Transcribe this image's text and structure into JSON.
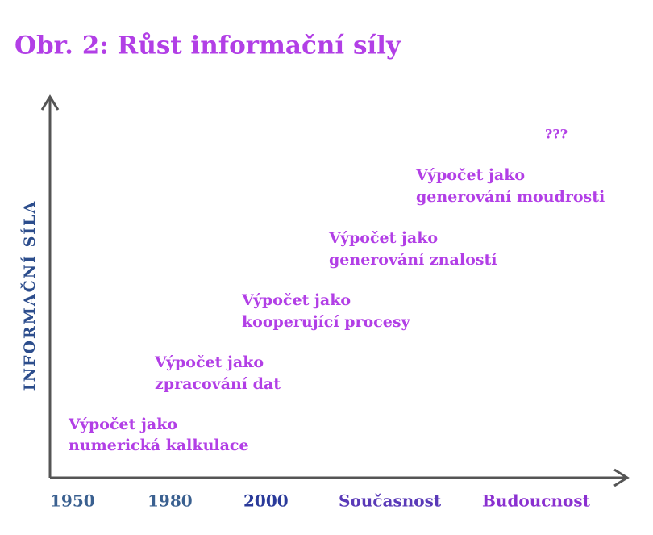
{
  "title": "Obr. 2: Růst informační síly",
  "y_axis_label": "INFORMAČNÍ SÍLA",
  "x_labels": [
    "1950",
    "1980",
    "2000",
    "Současnost",
    "Budoucnost"
  ],
  "stages": [
    {
      "lines": [
        "Výpočet jako",
        "numerická kalkulace"
      ]
    },
    {
      "lines": [
        "Výpočet jako",
        "zpracování dat"
      ]
    },
    {
      "lines": [
        "Výpočet jako",
        "kooperující procesy"
      ]
    },
    {
      "lines": [
        "Výpočet jako",
        "generování znalostí"
      ]
    },
    {
      "lines": [
        "Výpočet jako",
        "generování moudrosti"
      ]
    }
  ],
  "future": "???"
}
